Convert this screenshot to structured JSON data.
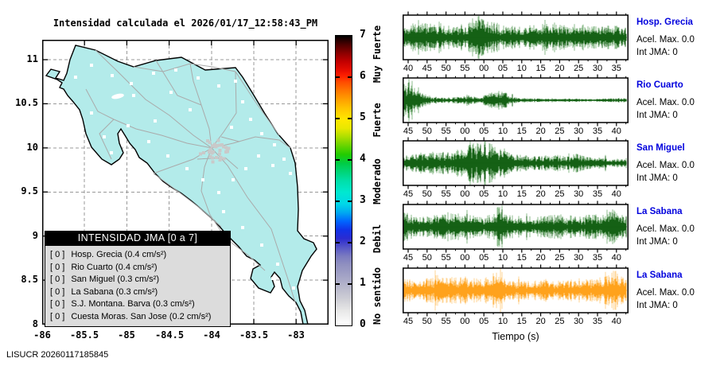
{
  "map": {
    "title": "Intensidad calculada el 2026/01/17_12:58:43_PM",
    "x_tick_labels": [
      "-86",
      "-85.5",
      "-85",
      "-84.5",
      "-84",
      "-83.5",
      "-83"
    ],
    "y_tick_labels": [
      "11",
      "10.5",
      "10",
      "9.5",
      "9",
      "8.5",
      "8"
    ],
    "land_color": "#b3ebea",
    "coast_color": "#000000",
    "road_color": "#aaaaaa",
    "grid_color": "#999999",
    "station_marker_color": "#ffffff",
    "cluster_marker_color": "#c9c9c9"
  },
  "legend": {
    "title": "INTENSIDAD JMA [0 a 7]",
    "rows": [
      {
        "badge": "[ 0 ]",
        "label": "Hosp. Grecia (0.4 cm/s²)"
      },
      {
        "badge": "[ 0 ]",
        "label": "Rio Cuarto (0.4 cm/s²)"
      },
      {
        "badge": "[ 0 ]",
        "label": "San Miguel (0.3 cm/s²)"
      },
      {
        "badge": "[ 0 ]",
        "label": "La Sabana (0.3 cm/s²)"
      },
      {
        "badge": "[ 0 ]",
        "label": "S.J. Montana. Barva (0.3 cm/s²)"
      },
      {
        "badge": "[ 0 ]",
        "label": "Cuesta Moras. San Jose (0.2 cm/s²)"
      }
    ]
  },
  "colorbar": {
    "tick_labels": [
      "7",
      "6",
      "5",
      "4",
      "3",
      "2",
      "1",
      "0"
    ],
    "category_labels": [
      "Muy Fuerte",
      "Fuerte",
      "Moderado",
      "Debil",
      "No sentido"
    ]
  },
  "seismograms": {
    "xlabel": "Tiempo (s)",
    "panels": [
      {
        "station": "Hosp. Grecia",
        "acel_max": "Acel. Max. 0.0",
        "int_jma": "Int JMA: 0",
        "tick_labels": [
          "40",
          "45",
          "50",
          "55",
          "00",
          "05",
          "10",
          "15",
          "20",
          "25",
          "30",
          "35"
        ],
        "color": "#156115",
        "color_light": "#8dbc8d",
        "seed": 11,
        "envelope": [
          [
            0,
            0.5
          ],
          [
            0.08,
            0.62
          ],
          [
            0.15,
            0.5
          ],
          [
            0.22,
            0.46
          ],
          [
            0.3,
            0.6
          ],
          [
            0.34,
            0.95
          ],
          [
            0.37,
            0.72
          ],
          [
            0.45,
            0.5
          ],
          [
            0.52,
            0.44
          ],
          [
            0.6,
            0.52
          ],
          [
            0.68,
            0.6
          ],
          [
            0.72,
            0.5
          ],
          [
            0.78,
            0.56
          ],
          [
            0.85,
            0.44
          ],
          [
            0.92,
            0.5
          ],
          [
            1,
            0.42
          ]
        ]
      },
      {
        "station": "Rio Cuarto",
        "acel_max": "Acel. Max. 0.0",
        "int_jma": "Int JMA: 0",
        "tick_labels": [
          "45",
          "50",
          "55",
          "00",
          "05",
          "10",
          "15",
          "20",
          "25",
          "30",
          "35",
          "40"
        ],
        "color": "#156115",
        "color_light": "#8dbc8d",
        "seed": 22,
        "envelope": [
          [
            0,
            0.85
          ],
          [
            0.02,
            1
          ],
          [
            0.05,
            0.75
          ],
          [
            0.08,
            0.32
          ],
          [
            0.12,
            0.16
          ],
          [
            0.18,
            0.1
          ],
          [
            0.24,
            0.14
          ],
          [
            0.3,
            0.18
          ],
          [
            0.34,
            0.12
          ],
          [
            0.38,
            0.3
          ],
          [
            0.42,
            0.38
          ],
          [
            0.46,
            0.3
          ],
          [
            0.5,
            0.12
          ],
          [
            0.58,
            0.08
          ],
          [
            0.66,
            0.06
          ],
          [
            0.75,
            0.07
          ],
          [
            0.85,
            0.06
          ],
          [
            0.95,
            0.08
          ],
          [
            1,
            0.1
          ]
        ]
      },
      {
        "station": "San Miguel",
        "acel_max": "Acel. Max. 0.0",
        "int_jma": "Int JMA: 0",
        "tick_labels": [
          "45",
          "50",
          "55",
          "00",
          "05",
          "10",
          "15",
          "20",
          "25",
          "30",
          "35",
          "40"
        ],
        "color": "#156115",
        "color_light": "#8dbc8d",
        "seed": 33,
        "envelope": [
          [
            0,
            0.3
          ],
          [
            0.08,
            0.42
          ],
          [
            0.15,
            0.4
          ],
          [
            0.2,
            0.5
          ],
          [
            0.26,
            0.65
          ],
          [
            0.3,
            1
          ],
          [
            0.34,
            0.8
          ],
          [
            0.38,
            0.95
          ],
          [
            0.42,
            0.7
          ],
          [
            0.46,
            0.55
          ],
          [
            0.5,
            0.35
          ],
          [
            0.56,
            0.28
          ],
          [
            0.62,
            0.3
          ],
          [
            0.68,
            0.34
          ],
          [
            0.73,
            0.3
          ],
          [
            0.78,
            0.38
          ],
          [
            0.82,
            0.28
          ],
          [
            0.9,
            0.22
          ],
          [
            1,
            0.18
          ]
        ]
      },
      {
        "station": "La Sabana",
        "acel_max": "Acel. Max. 0.0",
        "int_jma": "Int JMA: 0",
        "tick_labels": [
          "45",
          "50",
          "55",
          "00",
          "05",
          "10",
          "15",
          "20",
          "25",
          "30",
          "35",
          "40"
        ],
        "color": "#156115",
        "color_light": "#8dbc8d",
        "seed": 44,
        "envelope": [
          [
            0,
            0.62
          ],
          [
            0.05,
            0.4
          ],
          [
            0.1,
            0.44
          ],
          [
            0.14,
            0.52
          ],
          [
            0.2,
            0.6
          ],
          [
            0.24,
            0.55
          ],
          [
            0.3,
            0.45
          ],
          [
            0.35,
            0.42
          ],
          [
            0.4,
            0.5
          ],
          [
            0.43,
            1
          ],
          [
            0.46,
            0.55
          ],
          [
            0.52,
            0.35
          ],
          [
            0.58,
            0.38
          ],
          [
            0.64,
            0.45
          ],
          [
            0.7,
            0.5
          ],
          [
            0.76,
            0.44
          ],
          [
            0.82,
            0.48
          ],
          [
            0.88,
            0.52
          ],
          [
            0.93,
            0.85
          ],
          [
            0.97,
            0.6
          ],
          [
            1,
            0.5
          ]
        ]
      },
      {
        "station": "La Sabana",
        "acel_max": "Acel. Max. 0.0",
        "int_jma": "Int JMA: 0",
        "tick_labels": [
          "45",
          "50",
          "55",
          "00",
          "05",
          "10",
          "15",
          "20",
          "25",
          "30",
          "35",
          "40"
        ],
        "color": "#ffa21c",
        "color_light": "#ffd595",
        "seed": 55,
        "envelope": [
          [
            0,
            0.55
          ],
          [
            0.05,
            0.42
          ],
          [
            0.1,
            0.5
          ],
          [
            0.15,
            0.62
          ],
          [
            0.2,
            0.52
          ],
          [
            0.25,
            0.6
          ],
          [
            0.3,
            0.5
          ],
          [
            0.36,
            0.44
          ],
          [
            0.4,
            0.52
          ],
          [
            0.43,
            1
          ],
          [
            0.46,
            0.5
          ],
          [
            0.52,
            0.36
          ],
          [
            0.6,
            0.4
          ],
          [
            0.66,
            0.46
          ],
          [
            0.72,
            0.42
          ],
          [
            0.78,
            0.5
          ],
          [
            0.84,
            0.46
          ],
          [
            0.9,
            0.55
          ],
          [
            0.94,
            0.9
          ],
          [
            0.97,
            0.65
          ],
          [
            1,
            0.55
          ]
        ]
      }
    ]
  },
  "footer": "LISUCR 20260117185845",
  "chart_data": {
    "type": "line",
    "title": "Intensidad calculada el 2026/01/17_12:58:43_PM",
    "map": {
      "region": "Costa Rica",
      "x_ticks": [
        -86,
        -85.5,
        -85,
        -84.5,
        -84,
        -83.5,
        -83
      ],
      "y_ticks": [
        11,
        10.5,
        10,
        9.5,
        9,
        8.5,
        8
      ],
      "intensity_scale": {
        "range": [
          0,
          7
        ],
        "categories": [
          {
            "label": "No sentido",
            "approx_range": [
              0,
              1
            ]
          },
          {
            "label": "Debil",
            "approx_range": [
              1.5,
              2.5
            ]
          },
          {
            "label": "Moderado",
            "approx_range": [
              2.5,
              4
            ]
          },
          {
            "label": "Fuerte",
            "approx_range": [
              4.5,
              5.5
            ]
          },
          {
            "label": "Muy Fuerte",
            "approx_range": [
              5.5,
              7
            ]
          }
        ]
      },
      "stations": [
        {
          "name": "Hosp. Grecia",
          "int_jma": 0,
          "acel_cm_s2": 0.4
        },
        {
          "name": "Rio Cuarto",
          "int_jma": 0,
          "acel_cm_s2": 0.4
        },
        {
          "name": "San Miguel",
          "int_jma": 0,
          "acel_cm_s2": 0.3
        },
        {
          "name": "La Sabana",
          "int_jma": 0,
          "acel_cm_s2": 0.3
        },
        {
          "name": "S.J. Montana. Barva",
          "int_jma": 0,
          "acel_cm_s2": 0.3
        },
        {
          "name": "Cuesta Moras. San Jose",
          "int_jma": 0,
          "acel_cm_s2": 0.2
        }
      ]
    },
    "seismograms": {
      "xlabel": "Tiempo (s)",
      "panels": [
        {
          "station": "Hosp. Grecia",
          "acel_max": 0.0,
          "int_jma": 0,
          "x_tick_labels": [
            "40",
            "45",
            "50",
            "55",
            "00",
            "05",
            "10",
            "15",
            "20",
            "25",
            "30",
            "35"
          ]
        },
        {
          "station": "Rio Cuarto",
          "acel_max": 0.0,
          "int_jma": 0,
          "x_tick_labels": [
            "45",
            "50",
            "55",
            "00",
            "05",
            "10",
            "15",
            "20",
            "25",
            "30",
            "35",
            "40"
          ]
        },
        {
          "station": "San Miguel",
          "acel_max": 0.0,
          "int_jma": 0,
          "x_tick_labels": [
            "45",
            "50",
            "55",
            "00",
            "05",
            "10",
            "15",
            "20",
            "25",
            "30",
            "35",
            "40"
          ]
        },
        {
          "station": "La Sabana",
          "acel_max": 0.0,
          "int_jma": 0,
          "x_tick_labels": [
            "45",
            "50",
            "55",
            "00",
            "05",
            "10",
            "15",
            "20",
            "25",
            "30",
            "35",
            "40"
          ]
        },
        {
          "station": "La Sabana",
          "acel_max": 0.0,
          "int_jma": 0,
          "x_tick_labels": [
            "45",
            "50",
            "55",
            "00",
            "05",
            "10",
            "15",
            "20",
            "25",
            "30",
            "35",
            "40"
          ]
        }
      ]
    }
  }
}
